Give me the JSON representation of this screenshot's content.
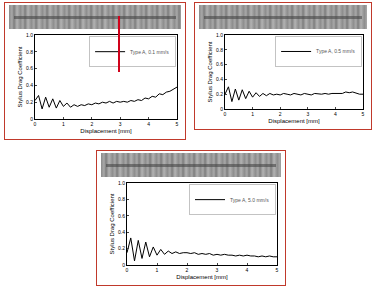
{
  "chart_data": [
    {
      "type": "line",
      "xlabel": "Displacement [mm]",
      "ylabel": "Stylus Drag Coefficient",
      "xlim": [
        0,
        5
      ],
      "xticks": [
        0,
        1,
        2,
        3,
        4,
        5
      ],
      "ylim": [
        0,
        1
      ],
      "yticks": [
        0,
        {
          "value": 0.2,
          "label": "0.2"
        },
        {
          "value": 0.4,
          "label": "0.4"
        },
        {
          "value": 0.6,
          "label": "0.6"
        },
        {
          "value": 0.8,
          "label": "0.8"
        },
        {
          "value": 1,
          "label": "1.0"
        }
      ],
      "legend": "upper right",
      "series": [
        {
          "name": "Type A, 0.1 mm/s",
          "color": "#000000",
          "x": [
            0,
            0.125,
            0.25,
            0.375,
            0.5,
            0.625,
            0.75,
            0.875,
            1,
            1.125,
            1.25,
            1.375,
            1.5,
            1.625,
            1.75,
            1.875,
            2,
            2.125,
            2.25,
            2.375,
            2.5,
            2.625,
            2.75,
            2.875,
            3,
            3.125,
            3.25,
            3.375,
            3.5,
            3.625,
            3.75,
            3.875,
            4,
            4.125,
            4.25,
            4.375,
            4.5,
            4.625,
            4.75,
            4.875,
            5
          ],
          "values": [
            0.22,
            0.28,
            0.12,
            0.26,
            0.14,
            0.24,
            0.13,
            0.22,
            0.15,
            0.19,
            0.14,
            0.17,
            0.15,
            0.17,
            0.16,
            0.18,
            0.17,
            0.19,
            0.18,
            0.2,
            0.19,
            0.21,
            0.19,
            0.21,
            0.2,
            0.21,
            0.2,
            0.22,
            0.21,
            0.23,
            0.22,
            0.25,
            0.24,
            0.27,
            0.26,
            0.3,
            0.29,
            0.32,
            0.33,
            0.36,
            0.38
          ]
        }
      ]
    },
    {
      "type": "line",
      "xlabel": "Displacement [mm]",
      "ylabel": "Stylus Drag Coefficient",
      "xlim": [
        0,
        5
      ],
      "xticks": [
        0,
        1,
        2,
        3,
        4,
        5
      ],
      "ylim": [
        0,
        1
      ],
      "yticks": [
        0,
        {
          "value": 0.2,
          "label": "0.2"
        },
        {
          "value": 0.4,
          "label": "0.4"
        },
        {
          "value": 0.6,
          "label": "0.6"
        },
        {
          "value": 0.8,
          "label": "0.8"
        },
        {
          "value": 1,
          "label": "1.0"
        }
      ],
      "legend": "upper right",
      "series": [
        {
          "name": "Type A, 0.5 mm/s",
          "color": "#000000",
          "x": [
            0,
            0.125,
            0.25,
            0.375,
            0.5,
            0.625,
            0.75,
            0.875,
            1,
            1.125,
            1.25,
            1.375,
            1.5,
            1.625,
            1.75,
            1.875,
            2,
            2.125,
            2.25,
            2.375,
            2.5,
            2.625,
            2.75,
            2.875,
            3,
            3.125,
            3.25,
            3.375,
            3.5,
            3.625,
            3.75,
            3.875,
            4,
            4.125,
            4.25,
            4.375,
            4.5,
            4.625,
            4.75,
            4.875,
            5
          ],
          "values": [
            0.2,
            0.3,
            0.1,
            0.27,
            0.12,
            0.26,
            0.14,
            0.24,
            0.16,
            0.22,
            0.17,
            0.21,
            0.18,
            0.21,
            0.19,
            0.2,
            0.19,
            0.21,
            0.2,
            0.19,
            0.21,
            0.2,
            0.19,
            0.21,
            0.2,
            0.19,
            0.21,
            0.2,
            0.2,
            0.21,
            0.2,
            0.21,
            0.21,
            0.22,
            0.21,
            0.23,
            0.22,
            0.23,
            0.21,
            0.2,
            0.2
          ]
        }
      ]
    },
    {
      "type": "line",
      "xlabel": "Displacement [mm]",
      "ylabel": "Stylus Drag Coefficient",
      "xlim": [
        0,
        5
      ],
      "xticks": [
        0,
        1,
        2,
        3,
        4,
        5
      ],
      "ylim": [
        0,
        1
      ],
      "yticks": [
        0,
        {
          "value": 0.2,
          "label": "0.2"
        },
        {
          "value": 0.4,
          "label": "0.4"
        },
        {
          "value": 0.6,
          "label": "0.6"
        },
        {
          "value": 0.8,
          "label": "0.8"
        },
        {
          "value": 1,
          "label": "1.0"
        }
      ],
      "legend": "upper right",
      "series": [
        {
          "name": "Type A, 5.0 mm/s",
          "color": "#000000",
          "x": [
            0,
            0.125,
            0.25,
            0.375,
            0.5,
            0.625,
            0.75,
            0.875,
            1,
            1.125,
            1.25,
            1.375,
            1.5,
            1.625,
            1.75,
            1.875,
            2,
            2.125,
            2.25,
            2.375,
            2.5,
            2.625,
            2.75,
            2.875,
            3,
            3.125,
            3.25,
            3.375,
            3.5,
            3.625,
            3.75,
            3.875,
            4,
            4.125,
            4.25,
            4.375,
            4.5,
            4.625,
            4.75,
            4.875,
            5
          ],
          "values": [
            0.15,
            0.33,
            0.05,
            0.3,
            0.08,
            0.28,
            0.1,
            0.22,
            0.12,
            0.19,
            0.13,
            0.17,
            0.14,
            0.16,
            0.14,
            0.15,
            0.15,
            0.14,
            0.15,
            0.13,
            0.14,
            0.13,
            0.14,
            0.12,
            0.13,
            0.12,
            0.13,
            0.12,
            0.12,
            0.11,
            0.12,
            0.11,
            0.12,
            0.11,
            0.11,
            0.1,
            0.11,
            0.1,
            0.11,
            0.1,
            0.1
          ]
        }
      ]
    }
  ]
}
